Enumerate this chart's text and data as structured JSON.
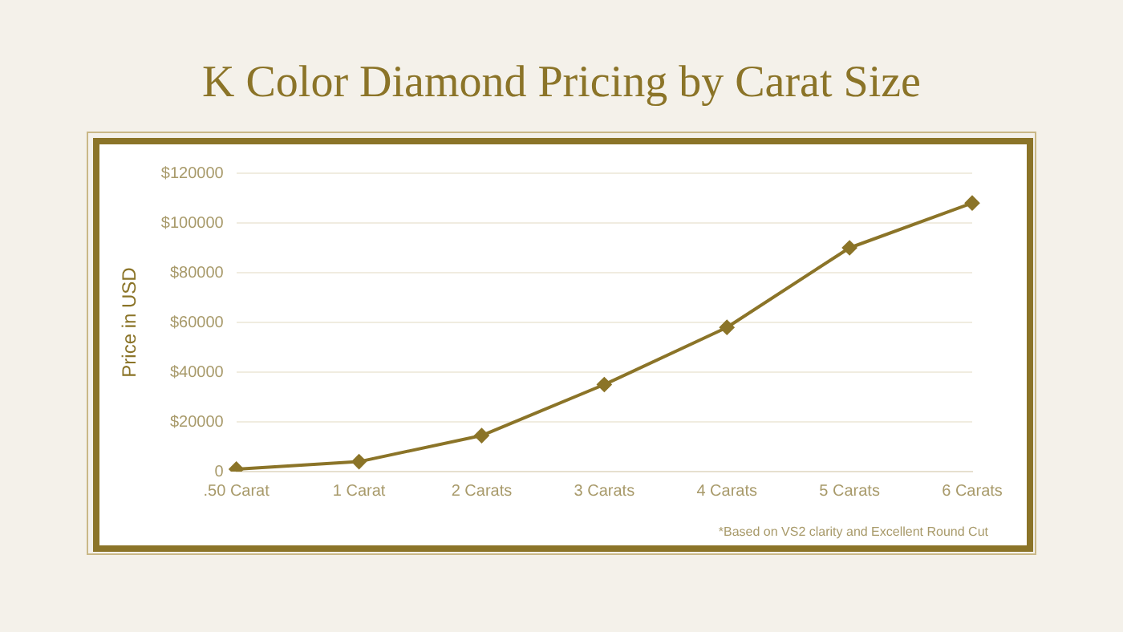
{
  "chart_data": {
    "type": "line",
    "title": "K Color Diamond Pricing by Carat Size",
    "ylabel": "Price in USD",
    "categories": [
      ".50 Carat",
      "1 Carat",
      "2 Carats",
      "3 Carats",
      "4 Carats",
      "5 Carats",
      "6 Carats"
    ],
    "series": [
      {
        "color": "#8b7428",
        "values": [
          1000,
          4000,
          14500,
          35000,
          58000,
          90000,
          108000
        ]
      }
    ],
    "ylim": [
      0,
      120000
    ],
    "yticks": [
      {
        "value": 0,
        "label": "0"
      },
      {
        "value": 20000,
        "label": "$20000"
      },
      {
        "value": 40000,
        "label": "$40000"
      },
      {
        "value": 60000,
        "label": "$60000"
      },
      {
        "value": 80000,
        "label": "$80000"
      },
      {
        "value": 100000,
        "label": "$100000"
      },
      {
        "value": 120000,
        "label": "$120000"
      }
    ],
    "grid": "y",
    "legend": false,
    "marker": "diamond",
    "line_style": "solid",
    "annotations": [
      "*Based on VS2 clarity and Excellent Round Cut"
    ]
  }
}
